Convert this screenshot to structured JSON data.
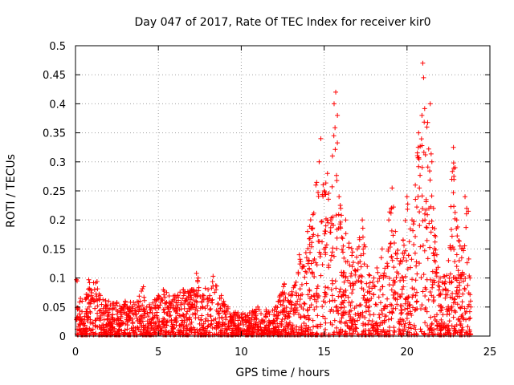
{
  "chart_data": {
    "type": "scatter",
    "title": "Day 047 of 2017, Rate Of TEC Index for receiver kir0",
    "xlabel": "GPS time / hours",
    "ylabel": "ROTI / TECUs",
    "xlim": [
      0,
      25
    ],
    "ylim": [
      0,
      0.5
    ],
    "xticks": [
      0,
      5,
      10,
      15,
      20,
      25
    ],
    "yticks": [
      0,
      0.05,
      0.1,
      0.15,
      0.2,
      0.25,
      0.3,
      0.35,
      0.4,
      0.45,
      0.5
    ],
    "grid": true,
    "marker": "+",
    "color": "#ff0000",
    "series": [
      {
        "name": "ROTI",
        "points": [
          [
            0.05,
            0.097
          ],
          [
            0.1,
            0.095
          ],
          [
            0.3,
            0.065
          ],
          [
            0.4,
            0.06
          ],
          [
            0.8,
            0.097
          ],
          [
            0.85,
            0.092
          ],
          [
            1.3,
            0.094
          ],
          [
            1.5,
            0.07
          ],
          [
            2.0,
            0.06
          ],
          [
            2.5,
            0.058
          ],
          [
            3.0,
            0.06
          ],
          [
            3.5,
            0.058
          ],
          [
            4.1,
            0.085
          ],
          [
            4.3,
            0.05
          ],
          [
            5.0,
            0.07
          ],
          [
            5.3,
            0.08
          ],
          [
            5.5,
            0.075
          ],
          [
            6.0,
            0.07
          ],
          [
            6.5,
            0.08
          ],
          [
            7.0,
            0.08
          ],
          [
            7.3,
            0.108
          ],
          [
            7.4,
            0.1
          ],
          [
            8.0,
            0.08
          ],
          [
            8.3,
            0.103
          ],
          [
            8.8,
            0.07
          ],
          [
            9.2,
            0.05
          ],
          [
            9.8,
            0.04
          ],
          [
            10.5,
            0.04
          ],
          [
            11.0,
            0.05
          ],
          [
            11.5,
            0.045
          ],
          [
            12.0,
            0.045
          ],
          [
            12.6,
            0.09
          ],
          [
            13.0,
            0.07
          ],
          [
            13.5,
            0.14
          ],
          [
            13.8,
            0.12
          ],
          [
            14.0,
            0.18
          ],
          [
            14.5,
            0.26
          ],
          [
            14.7,
            0.3
          ],
          [
            14.8,
            0.34
          ],
          [
            15.0,
            0.25
          ],
          [
            15.2,
            0.28
          ],
          [
            15.4,
            0.2
          ],
          [
            15.5,
            0.31
          ],
          [
            15.6,
            0.4
          ],
          [
            15.7,
            0.42
          ],
          [
            15.8,
            0.38
          ],
          [
            15.9,
            0.24
          ],
          [
            16.0,
            0.22
          ],
          [
            16.3,
            0.2
          ],
          [
            16.5,
            0.16
          ],
          [
            17.0,
            0.15
          ],
          [
            17.3,
            0.2
          ],
          [
            17.6,
            0.12
          ],
          [
            18.0,
            0.1
          ],
          [
            18.5,
            0.15
          ],
          [
            18.9,
            0.2
          ],
          [
            19.1,
            0.255
          ],
          [
            19.3,
            0.18
          ],
          [
            19.6,
            0.13
          ],
          [
            20.0,
            0.24
          ],
          [
            20.3,
            0.2
          ],
          [
            20.5,
            0.26
          ],
          [
            20.7,
            0.35
          ],
          [
            20.9,
            0.38
          ],
          [
            20.95,
            0.47
          ],
          [
            21.0,
            0.445
          ],
          [
            21.2,
            0.36
          ],
          [
            21.4,
            0.4
          ],
          [
            21.5,
            0.3
          ],
          [
            21.6,
            0.22
          ],
          [
            21.8,
            0.14
          ],
          [
            22.0,
            0.1
          ],
          [
            22.5,
            0.13
          ],
          [
            22.7,
            0.27
          ],
          [
            22.8,
            0.325
          ],
          [
            22.9,
            0.29
          ],
          [
            23.0,
            0.2
          ],
          [
            23.3,
            0.15
          ],
          [
            23.5,
            0.24
          ],
          [
            23.6,
            0.22
          ],
          [
            23.7,
            0.215
          ],
          [
            23.8,
            0.1
          ],
          [
            23.85,
            0.05
          ]
        ]
      }
    ]
  }
}
